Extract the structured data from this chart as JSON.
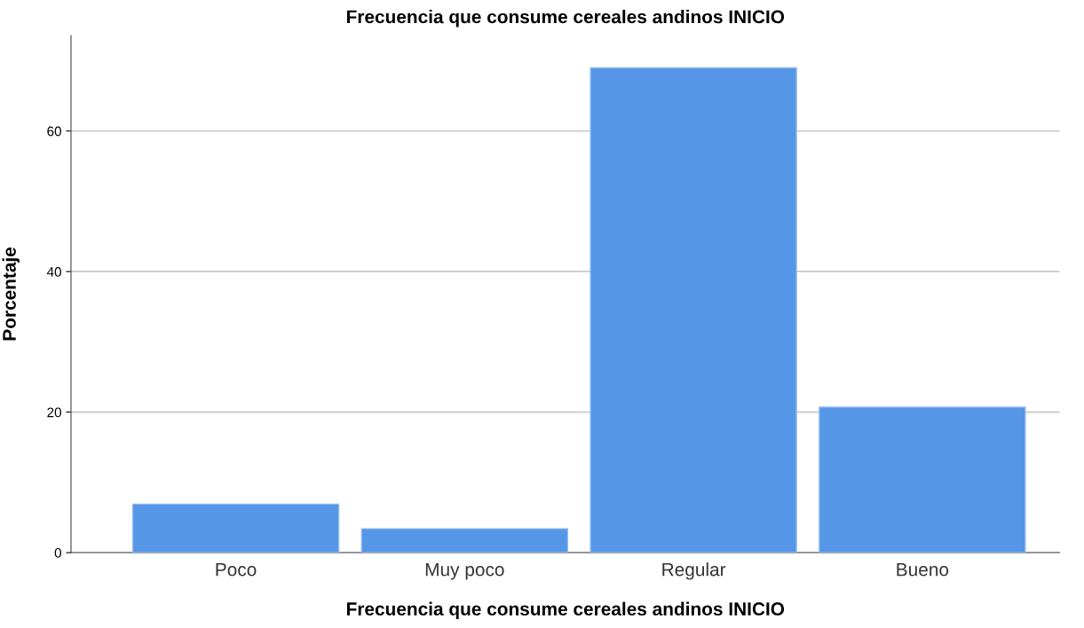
{
  "chart_data": {
    "type": "bar",
    "title": "Frecuencia que consume cereales andinos INICIO",
    "xlabel": "Frecuencia que consume cereales andinos INICIO",
    "ylabel": "Porcentaje",
    "categories": [
      "Poco",
      "Muy poco",
      "Regular",
      "Bueno"
    ],
    "values": [
      6.9,
      3.4,
      69.0,
      20.7
    ],
    "color": "#5596e6",
    "ylim": [
      0,
      73.6
    ],
    "yticks": [
      0,
      20,
      40,
      60
    ],
    "grid": "y",
    "legend": false
  }
}
